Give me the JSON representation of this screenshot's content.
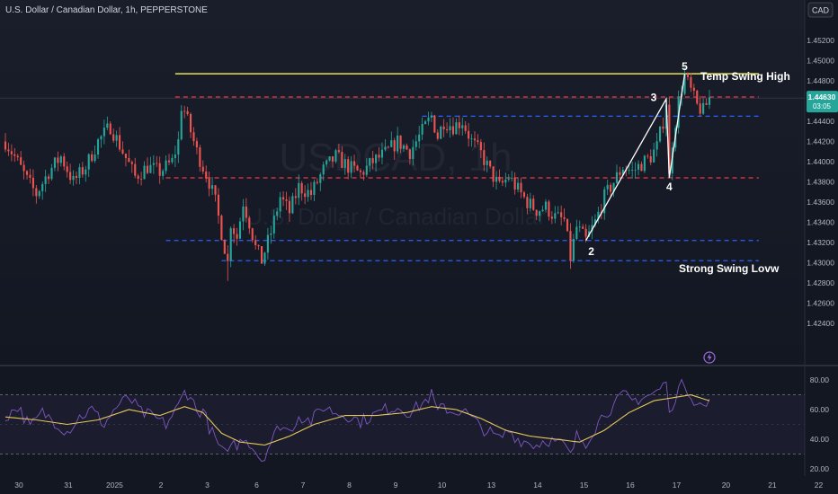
{
  "header": {
    "symbol_title": "U.S. Dollar / Canadian Dollar, 1h, PEPPERSTONE",
    "currency_badge": "CAD"
  },
  "watermark": {
    "ticker": "USDCAD, 1h",
    "name": "U.S. Dollar / Canadian Dollar"
  },
  "price_badge": {
    "price": "1.44630",
    "countdown": "03:05"
  },
  "colors": {
    "background": "#131722",
    "candle_up": "#26a69a",
    "candle_down": "#ef5350",
    "resistance_yellow": "#e6e35a",
    "red_level": "#f23645",
    "blue_level": "#2962ff",
    "rsi_line": "#7e57c2",
    "rsi_ma": "#e6c85a",
    "text": "#b2b5be",
    "annotation_white": "#ffffff"
  },
  "chart_data": [
    {
      "type": "candlestick",
      "title": "U.S. Dollar / Canadian Dollar, 1h, PEPPERSTONE",
      "ylim": [
        1.42,
        1.456
      ],
      "y_ticks": [
        "1.45200",
        "1.45000",
        "1.44800",
        "1.44600",
        "1.44400",
        "1.44200",
        "1.44000",
        "1.43800",
        "1.43600",
        "1.43400",
        "1.43200",
        "1.43000",
        "1.42800",
        "1.42600",
        "1.42400"
      ],
      "y_tick_values": [
        1.452,
        1.45,
        1.448,
        1.446,
        1.444,
        1.442,
        1.44,
        1.438,
        1.436,
        1.434,
        1.432,
        1.43,
        1.428,
        1.426,
        1.424
      ],
      "x_ticks": [
        "30",
        "31",
        "2025",
        "2",
        "3",
        "6",
        "7",
        "8",
        "9",
        "10",
        "13",
        "14",
        "15",
        "16",
        "17",
        "20",
        "21",
        "22"
      ],
      "x_tick_index": [
        0,
        16,
        31,
        46,
        61,
        77,
        92,
        107,
        122,
        137,
        153,
        168,
        183,
        198,
        213,
        229,
        244,
        259
      ],
      "price_path": [
        [
          0,
          1.442
        ],
        [
          3,
          1.4405
        ],
        [
          7,
          1.4382
        ],
        [
          10,
          1.4368
        ],
        [
          14,
          1.439
        ],
        [
          18,
          1.4405
        ],
        [
          22,
          1.438
        ],
        [
          26,
          1.4395
        ],
        [
          30,
          1.442
        ],
        [
          34,
          1.4435
        ],
        [
          38,
          1.441
        ],
        [
          42,
          1.4385
        ],
        [
          46,
          1.4395
        ],
        [
          50,
          1.439
        ],
        [
          54,
          1.44
        ],
        [
          56,
          1.442
        ],
        [
          57,
          1.4455
        ],
        [
          58,
          1.445
        ],
        [
          60,
          1.443
        ],
        [
          62,
          1.441
        ],
        [
          64,
          1.4395
        ],
        [
          66,
          1.438
        ],
        [
          68,
          1.436
        ],
        [
          70,
          1.433
        ],
        [
          72,
          1.43
        ],
        [
          73,
          1.434
        ],
        [
          75,
          1.4325
        ],
        [
          77,
          1.436
        ],
        [
          79,
          1.434
        ],
        [
          81,
          1.4315
        ],
        [
          83,
          1.4302
        ],
        [
          86,
          1.433
        ],
        [
          89,
          1.4365
        ],
        [
          92,
          1.435
        ],
        [
          95,
          1.4375
        ],
        [
          99,
          1.4368
        ],
        [
          103,
          1.4392
        ],
        [
          107,
          1.4405
        ],
        [
          111,
          1.4395
        ],
        [
          115,
          1.4388
        ],
        [
          119,
          1.44
        ],
        [
          123,
          1.4408
        ],
        [
          127,
          1.442
        ],
        [
          131,
          1.441
        ],
        [
          135,
          1.443
        ],
        [
          138,
          1.4445
        ],
        [
          140,
          1.4425
        ],
        [
          142,
          1.444
        ],
        [
          145,
          1.4435
        ],
        [
          148,
          1.444
        ],
        [
          151,
          1.442
        ],
        [
          154,
          1.4408
        ],
        [
          157,
          1.439
        ],
        [
          160,
          1.4375
        ],
        [
          163,
          1.4385
        ],
        [
          166,
          1.4372
        ],
        [
          169,
          1.436
        ],
        [
          172,
          1.4352
        ],
        [
          175,
          1.4355
        ],
        [
          178,
          1.4345
        ],
        [
          181,
          1.4342
        ],
        [
          183,
          1.4305
        ],
        [
          185,
          1.4335
        ],
        [
          188,
          1.4322
        ],
        [
          191,
          1.434
        ],
        [
          194,
          1.4365
        ],
        [
          197,
          1.438
        ],
        [
          200,
          1.4395
        ],
        [
          203,
          1.439
        ],
        [
          206,
          1.4398
        ],
        [
          209,
          1.4405
        ],
        [
          211,
          1.4415
        ],
        [
          213,
          1.444
        ],
        [
          214,
          1.446
        ],
        [
          215,
          1.4385
        ],
        [
          216,
          1.442
        ],
        [
          218,
          1.446
        ],
        [
          220,
          1.4485
        ],
        [
          222,
          1.447
        ],
        [
          224,
          1.4455
        ],
        [
          226,
          1.445
        ],
        [
          228,
          1.4463
        ]
      ],
      "levels": [
        {
          "style": "solid",
          "color": "yellow",
          "value": 1.4487,
          "from_index": 55,
          "to_index": 244
        },
        {
          "style": "dashed",
          "color": "red",
          "value": 1.4464,
          "from_index": 55,
          "to_index": 244
        },
        {
          "style": "dashed",
          "color": "blue",
          "value": 1.4445,
          "from_index": 135,
          "to_index": 244
        },
        {
          "style": "dashed",
          "color": "red",
          "value": 1.4384,
          "from_index": 52,
          "to_index": 244
        },
        {
          "style": "dashed",
          "color": "blue",
          "value": 1.4322,
          "from_index": 52,
          "to_index": 244
        },
        {
          "style": "dashed",
          "color": "blue",
          "value": 1.4302,
          "from_index": 70,
          "to_index": 244
        }
      ],
      "wave_points": [
        {
          "label": "2",
          "index": 188,
          "value": 1.4322
        },
        {
          "label": "3",
          "index": 214,
          "value": 1.4462
        },
        {
          "label": "4",
          "index": 215,
          "value": 1.4384
        },
        {
          "label": "5",
          "index": 220,
          "value": 1.4487
        }
      ],
      "annotations": [
        "Temp Swing High",
        "Strong Swing Lovw"
      ],
      "current_price": 1.4463
    },
    {
      "type": "line",
      "title": "",
      "ylim": [
        15,
        88
      ],
      "y_ticks": [
        "80.00",
        "60.00",
        "40.00",
        "20.00"
      ],
      "y_tick_values": [
        80,
        60,
        40,
        20
      ],
      "band": [
        30,
        70
      ],
      "series": [
        {
          "role": "rsi",
          "points": [
            [
              0,
              55
            ],
            [
              4,
              62
            ],
            [
              8,
              48
            ],
            [
              12,
              58
            ],
            [
              16,
              52
            ],
            [
              20,
              45
            ],
            [
              24,
              55
            ],
            [
              28,
              60
            ],
            [
              32,
              50
            ],
            [
              36,
              62
            ],
            [
              40,
              68
            ],
            [
              44,
              58
            ],
            [
              48,
              55
            ],
            [
              52,
              50
            ],
            [
              56,
              62
            ],
            [
              58,
              72
            ],
            [
              60,
              70
            ],
            [
              62,
              58
            ],
            [
              64,
              60
            ],
            [
              66,
              48
            ],
            [
              68,
              40
            ],
            [
              70,
              32
            ],
            [
              72,
              28
            ],
            [
              73,
              40
            ],
            [
              75,
              34
            ],
            [
              77,
              42
            ],
            [
              79,
              38
            ],
            [
              81,
              32
            ],
            [
              83,
              26
            ],
            [
              86,
              38
            ],
            [
              89,
              50
            ],
            [
              92,
              45
            ],
            [
              95,
              56
            ],
            [
              99,
              52
            ],
            [
              103,
              62
            ],
            [
              107,
              58
            ],
            [
              111,
              56
            ],
            [
              115,
              52
            ],
            [
              119,
              56
            ],
            [
              123,
              60
            ],
            [
              127,
              62
            ],
            [
              131,
              58
            ],
            [
              135,
              64
            ],
            [
              138,
              70
            ],
            [
              140,
              58
            ],
            [
              142,
              62
            ],
            [
              145,
              58
            ],
            [
              148,
              60
            ],
            [
              151,
              54
            ],
            [
              154,
              48
            ],
            [
              157,
              44
            ],
            [
              160,
              40
            ],
            [
              163,
              46
            ],
            [
              166,
              40
            ],
            [
              169,
              38
            ],
            [
              172,
              36
            ],
            [
              175,
              40
            ],
            [
              178,
              38
            ],
            [
              181,
              36
            ],
            [
              183,
              28
            ],
            [
              185,
              42
            ],
            [
              188,
              38
            ],
            [
              191,
              48
            ],
            [
              194,
              58
            ],
            [
              197,
              62
            ],
            [
              200,
              70
            ],
            [
              203,
              66
            ],
            [
              206,
              68
            ],
            [
              209,
              70
            ],
            [
              211,
              72
            ],
            [
              213,
              76
            ],
            [
              214,
              80
            ],
            [
              215,
              55
            ],
            [
              216,
              64
            ],
            [
              218,
              74
            ],
            [
              220,
              78
            ],
            [
              222,
              70
            ],
            [
              224,
              64
            ],
            [
              226,
              62
            ],
            [
              228,
              64
            ]
          ]
        },
        {
          "role": "rsi_ma",
          "points": [
            [
              0,
              55
            ],
            [
              10,
              53
            ],
            [
              20,
              50
            ],
            [
              30,
              53
            ],
            [
              40,
              60
            ],
            [
              50,
              56
            ],
            [
              58,
              62
            ],
            [
              64,
              58
            ],
            [
              70,
              44
            ],
            [
              76,
              38
            ],
            [
              84,
              36
            ],
            [
              92,
              42
            ],
            [
              100,
              50
            ],
            [
              110,
              56
            ],
            [
              120,
              56
            ],
            [
              130,
              58
            ],
            [
              138,
              62
            ],
            [
              146,
              60
            ],
            [
              154,
              54
            ],
            [
              162,
              46
            ],
            [
              170,
              42
            ],
            [
              178,
              40
            ],
            [
              186,
              38
            ],
            [
              194,
              46
            ],
            [
              202,
              58
            ],
            [
              210,
              66
            ],
            [
              216,
              68
            ],
            [
              222,
              70
            ],
            [
              228,
              66
            ]
          ]
        }
      ]
    }
  ]
}
